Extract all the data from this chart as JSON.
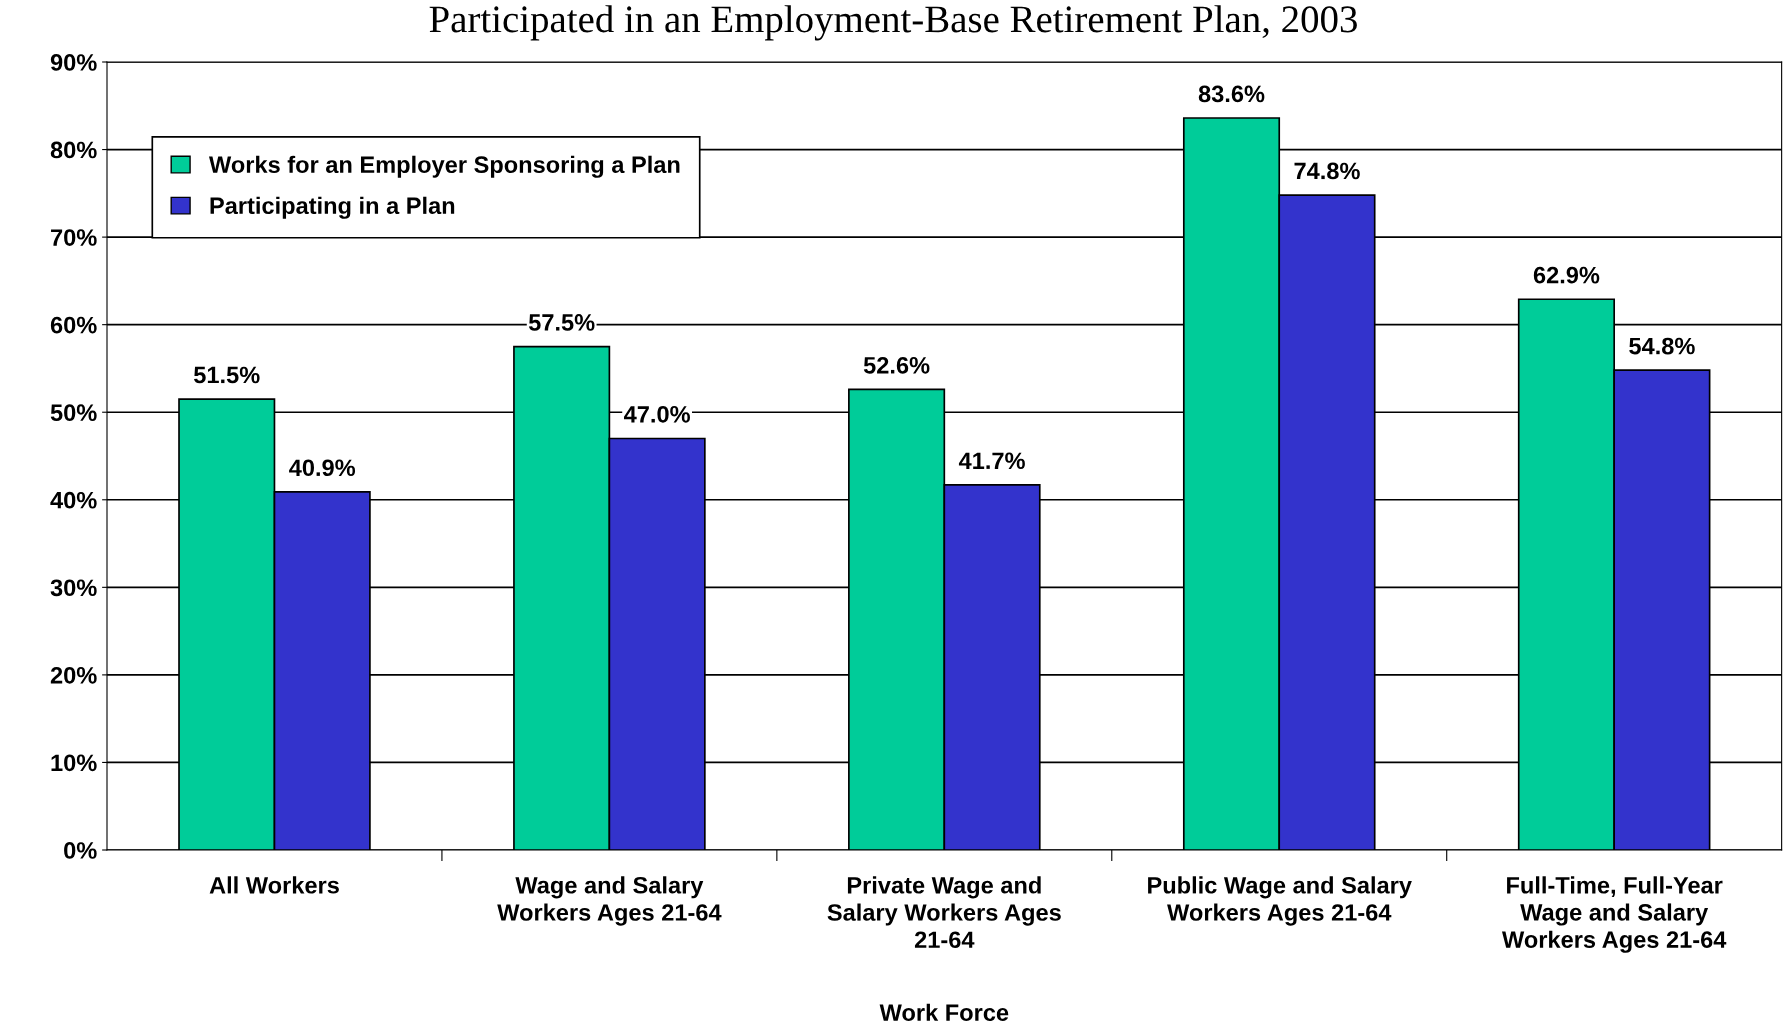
{
  "chart_data": {
    "type": "bar",
    "title": "Participated in an Employment-Base Retirement Plan, 2003",
    "xlabel": "Work Force",
    "categories": [
      "All Workers",
      "Wage and Salary\nWorkers Ages 21-64",
      "Private Wage and\nSalary Workers Ages\n21-64",
      "Public Wage and Salary\nWorkers Ages 21-64",
      "Full-Time, Full-Year\nWage and Salary\nWorkers Ages 21-64"
    ],
    "series": [
      {
        "name": "Works for an Employer Sponsoring a Plan",
        "color": "#00cc99",
        "values": [
          51.5,
          57.5,
          52.6,
          83.6,
          62.9
        ],
        "value_labels": [
          "51.5%",
          "57.5%",
          "52.6%",
          "83.6%",
          "62.9%"
        ]
      },
      {
        "name": "Participating in a Plan",
        "color": "#3333cc",
        "values": [
          40.9,
          47.0,
          41.7,
          74.8,
          54.8
        ],
        "value_labels": [
          "40.9%",
          "47.0%",
          "41.7%",
          "74.8%",
          "54.8%"
        ]
      }
    ],
    "ylim": [
      0,
      90
    ],
    "yticks": [
      {
        "value": 0,
        "label": "0%"
      },
      {
        "value": 10,
        "label": "10%"
      },
      {
        "value": 20,
        "label": "20%"
      },
      {
        "value": 30,
        "label": "30%"
      },
      {
        "value": 40,
        "label": "40%"
      },
      {
        "value": 50,
        "label": "50%"
      },
      {
        "value": 60,
        "label": "60%"
      },
      {
        "value": 70,
        "label": "70%"
      },
      {
        "value": 80,
        "label": "80%"
      },
      {
        "value": 90,
        "label": "90%"
      }
    ],
    "grid": "y",
    "legend": "top left"
  }
}
